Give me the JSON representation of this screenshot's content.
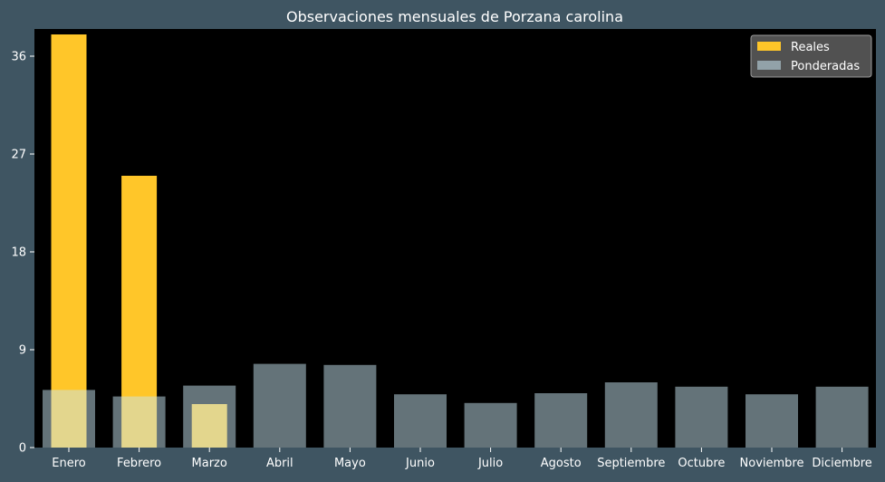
{
  "chart_data": {
    "type": "bar",
    "title": "Observaciones mensuales de Porzana carolina",
    "xlabel": "",
    "ylabel": "",
    "categories": [
      "Enero",
      "Febrero",
      "Marzo",
      "Abril",
      "Mayo",
      "Junio",
      "Julio",
      "Agosto",
      "Septiembre",
      "Octubre",
      "Noviembre",
      "Diciembre"
    ],
    "series": [
      {
        "name": "Reales",
        "color": "#ffc629",
        "values": [
          38,
          25,
          4,
          0,
          0,
          0,
          0,
          0,
          0,
          0,
          0,
          0
        ]
      },
      {
        "name": "Ponderadas",
        "color": "#c8e6f2",
        "opacity": 0.5,
        "values": [
          5.3,
          4.7,
          5.7,
          7.7,
          7.6,
          4.9,
          4.1,
          5.0,
          6.0,
          5.6,
          4.9,
          5.6
        ]
      }
    ],
    "ylim": [
      0,
      38.5
    ],
    "yticks": [
      0,
      9,
      18,
      27,
      36
    ],
    "grid": false,
    "legend_position": "top-right",
    "colors": {
      "background": "#3f5562",
      "plot_area": "#000000",
      "text": "#ffffff",
      "legend_bg": "#555555"
    }
  }
}
